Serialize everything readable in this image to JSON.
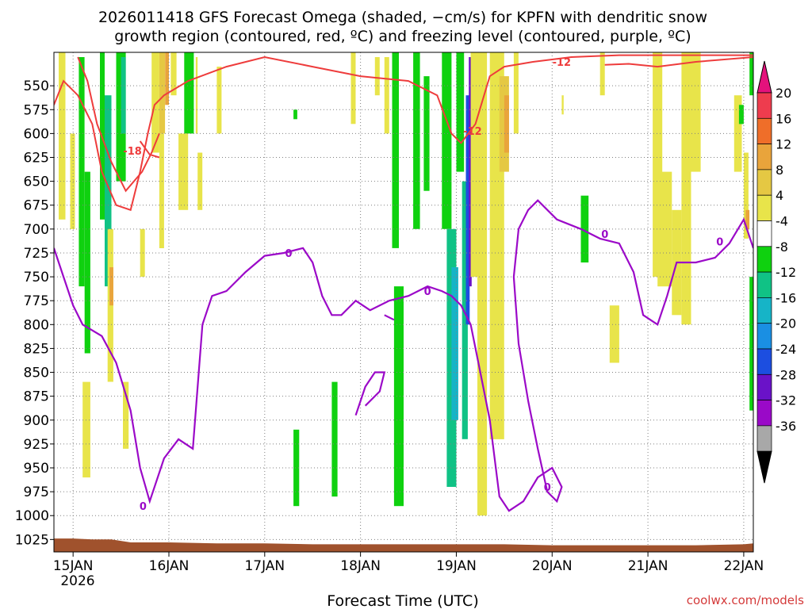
{
  "chart_data": {
    "type": "heatmap",
    "title_line1": "2026011418 GFS Forecast Omega (shaded, −cm/s) for KPFN with dendritic snow",
    "title_line2": "growth region (contoured, red, ºC) and freezing level (contoured, purple, ºC)",
    "xlabel": "Forecast Time (UTC)",
    "credit": "coolwx.com/models",
    "x_ticks": [
      "15JAN",
      "16JAN",
      "17JAN",
      "18JAN",
      "19JAN",
      "20JAN",
      "21JAN",
      "22JAN"
    ],
    "x_year": "2026",
    "x_range_days": [
      -0.2,
      7.1
    ],
    "y_ticks": [
      550,
      575,
      600,
      625,
      650,
      675,
      700,
      725,
      750,
      775,
      800,
      825,
      850,
      875,
      900,
      925,
      950,
      975,
      1000,
      1025
    ],
    "y_range_hpa": [
      515,
      1038
    ],
    "colorbar_labels": [
      20,
      16,
      12,
      8,
      4,
      -4,
      -8,
      -12,
      -16,
      -20,
      -24,
      -28,
      -32,
      -36
    ],
    "colorbar_colors": [
      "#ee3c4e",
      "#ef6e29",
      "#e9a43b",
      "#e5c843",
      "#e8e44a",
      "#ffffff",
      "#0fd10f",
      "#10c285",
      "#16b4c7",
      "#1a8fe3",
      "#1c4ee0",
      "#6a12c8",
      "#9a09c8",
      "#a8a8a8"
    ],
    "contour_labels_red": [
      "-18",
      "-12",
      "-12"
    ],
    "contour_labels_purple": [
      "0",
      "0",
      "0",
      "0",
      "0",
      "0"
    ],
    "colors": {
      "dendritic_contour": "#ee3c3c",
      "freezing_contour": "#9b09c8",
      "ground": "#a0522d",
      "grid": "#808080"
    }
  }
}
